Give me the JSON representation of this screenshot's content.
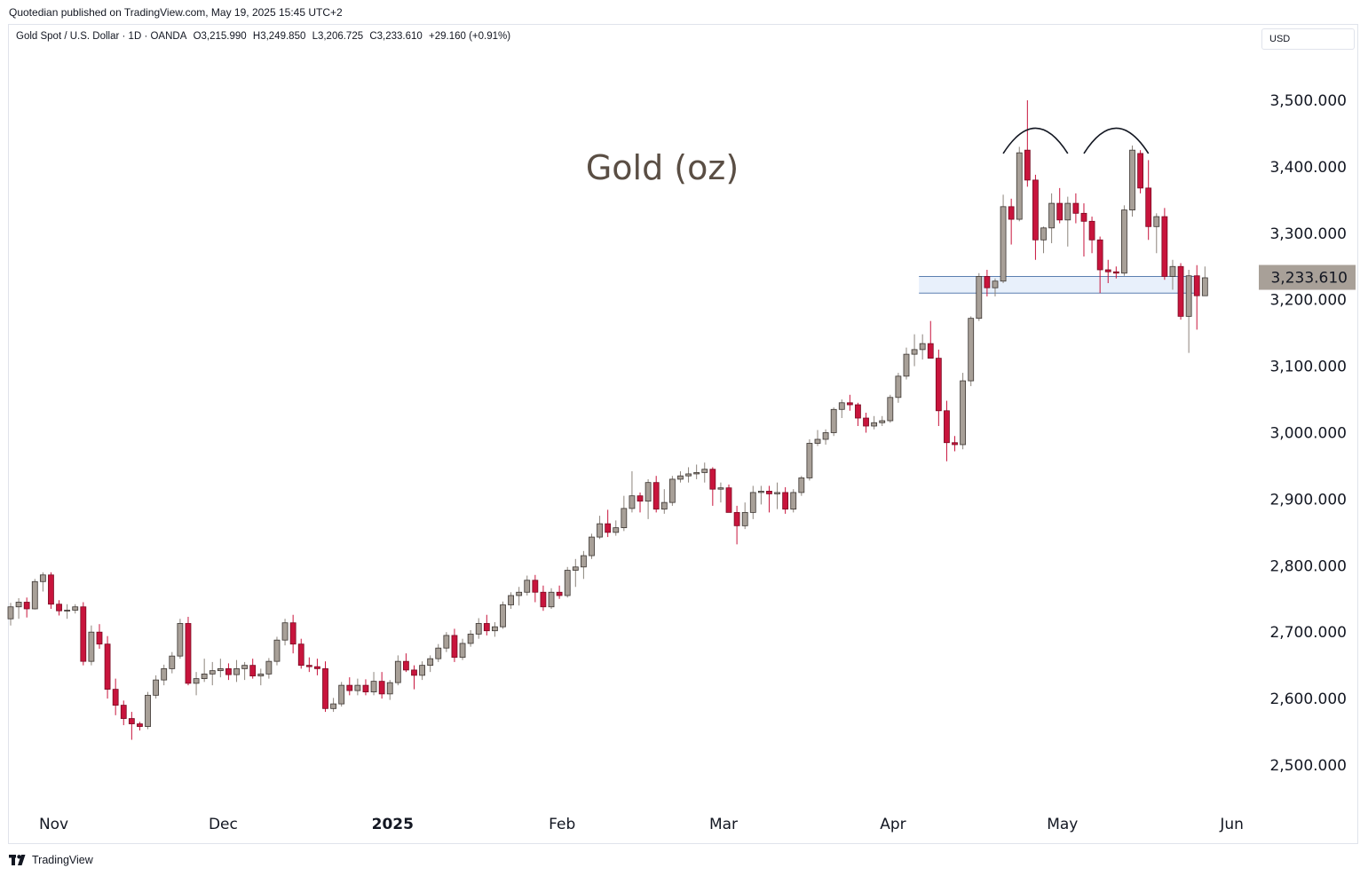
{
  "publisher_line": "Quotedian published on TradingView.com, May 19, 2025 15:45 UTC+2",
  "legend": {
    "symbol": "Gold Spot / U.S. Dollar · 1D · OANDA",
    "open": "O3,215.990",
    "high": "H3,249.850",
    "low": "L3,206.725",
    "close": "C3,233.610",
    "change": "+29.160 (+0.91%)"
  },
  "currency_label": "USD",
  "footer_logo_text": "TradingView",
  "colors": {
    "up": "#a8a098",
    "down": "#c8143c",
    "title": "#5a4e44",
    "grid_text": "#131722",
    "price_label_bg": "#a8a098",
    "zone_fill": "#e8f0fb",
    "zone_line": "#5b7fb0"
  },
  "chart_data": {
    "type": "candlestick",
    "title": "Gold (oz)",
    "symbol": "XAUUSD",
    "interval": "1D",
    "ylim": [
      2440,
      3560
    ],
    "y_ticks": [
      {
        "value": 2500,
        "label": "2,500.000"
      },
      {
        "value": 2600,
        "label": "2,600.000"
      },
      {
        "value": 2700,
        "label": "2,700.000"
      },
      {
        "value": 2800,
        "label": "2,800.000"
      },
      {
        "value": 2900,
        "label": "2,900.000"
      },
      {
        "value": 3000,
        "label": "3,000.000"
      },
      {
        "value": 3100,
        "label": "3,100.000"
      },
      {
        "value": 3200,
        "label": "3,200.000"
      },
      {
        "value": 3300,
        "label": "3,300.000"
      },
      {
        "value": 3400,
        "label": "3,400.000"
      },
      {
        "value": 3500,
        "label": "3,500.000"
      }
    ],
    "x_ticks": [
      {
        "index": 6,
        "label": "Nov",
        "bold": false
      },
      {
        "index": 27,
        "label": "Dec",
        "bold": false
      },
      {
        "index": 48,
        "label": "2025",
        "bold": true
      },
      {
        "index": 69,
        "label": "Feb",
        "bold": false
      },
      {
        "index": 89,
        "label": "Mar",
        "bold": false
      },
      {
        "index": 110,
        "label": "Apr",
        "bold": false
      },
      {
        "index": 131,
        "label": "May",
        "bold": false
      },
      {
        "index": 152,
        "label": "Jun",
        "bold": false
      }
    ],
    "candles": [
      [
        2720,
        2744,
        2710,
        2738
      ],
      [
        2738,
        2751,
        2720,
        2745
      ],
      [
        2745,
        2752,
        2722,
        2735
      ],
      [
        2735,
        2780,
        2734,
        2776
      ],
      [
        2776,
        2790,
        2761,
        2786
      ],
      [
        2786,
        2790,
        2735,
        2742
      ],
      [
        2742,
        2748,
        2725,
        2732
      ],
      [
        2732,
        2742,
        2720,
        2733
      ],
      [
        2733,
        2742,
        2728,
        2738
      ],
      [
        2738,
        2745,
        2650,
        2656
      ],
      [
        2656,
        2710,
        2650,
        2700
      ],
      [
        2700,
        2712,
        2675,
        2682
      ],
      [
        2682,
        2694,
        2600,
        2614
      ],
      [
        2614,
        2630,
        2575,
        2590
      ],
      [
        2590,
        2597,
        2560,
        2570
      ],
      [
        2570,
        2580,
        2538,
        2562
      ],
      [
        2562,
        2565,
        2552,
        2558
      ],
      [
        2558,
        2610,
        2554,
        2605
      ],
      [
        2605,
        2635,
        2600,
        2628
      ],
      [
        2628,
        2651,
        2620,
        2645
      ],
      [
        2645,
        2670,
        2638,
        2664
      ],
      [
        2664,
        2720,
        2660,
        2713
      ],
      [
        2713,
        2723,
        2620,
        2623
      ],
      [
        2623,
        2640,
        2605,
        2630
      ],
      [
        2630,
        2660,
        2625,
        2637
      ],
      [
        2637,
        2655,
        2620,
        2642
      ],
      [
        2642,
        2660,
        2632,
        2645
      ],
      [
        2645,
        2653,
        2628,
        2636
      ],
      [
        2636,
        2658,
        2625,
        2645
      ],
      [
        2645,
        2655,
        2628,
        2650
      ],
      [
        2650,
        2660,
        2630,
        2634
      ],
      [
        2634,
        2645,
        2620,
        2637
      ],
      [
        2637,
        2661,
        2630,
        2656
      ],
      [
        2656,
        2693,
        2650,
        2688
      ],
      [
        2688,
        2720,
        2680,
        2714
      ],
      [
        2714,
        2726,
        2668,
        2682
      ],
      [
        2682,
        2690,
        2645,
        2650
      ],
      [
        2650,
        2662,
        2640,
        2648
      ],
      [
        2648,
        2660,
        2635,
        2645
      ],
      [
        2645,
        2656,
        2580,
        2585
      ],
      [
        2585,
        2601,
        2580,
        2592
      ],
      [
        2592,
        2625,
        2588,
        2620
      ],
      [
        2620,
        2632,
        2605,
        2612
      ],
      [
        2612,
        2630,
        2605,
        2620
      ],
      [
        2620,
        2629,
        2605,
        2610
      ],
      [
        2610,
        2640,
        2605,
        2626
      ],
      [
        2626,
        2640,
        2600,
        2607
      ],
      [
        2607,
        2628,
        2598,
        2624
      ],
      [
        2624,
        2665,
        2620,
        2656
      ],
      [
        2656,
        2668,
        2640,
        2643
      ],
      [
        2643,
        2650,
        2614,
        2635
      ],
      [
        2635,
        2656,
        2628,
        2650
      ],
      [
        2650,
        2665,
        2640,
        2660
      ],
      [
        2660,
        2682,
        2655,
        2676
      ],
      [
        2676,
        2700,
        2670,
        2695
      ],
      [
        2695,
        2705,
        2655,
        2662
      ],
      [
        2662,
        2690,
        2658,
        2683
      ],
      [
        2683,
        2703,
        2678,
        2697
      ],
      [
        2697,
        2721,
        2690,
        2713
      ],
      [
        2713,
        2726,
        2695,
        2702
      ],
      [
        2702,
        2715,
        2693,
        2708
      ],
      [
        2708,
        2746,
        2705,
        2741
      ],
      [
        2741,
        2760,
        2735,
        2755
      ],
      [
        2755,
        2768,
        2740,
        2760
      ],
      [
        2760,
        2785,
        2755,
        2778
      ],
      [
        2778,
        2786,
        2745,
        2760
      ],
      [
        2760,
        2770,
        2732,
        2738
      ],
      [
        2738,
        2766,
        2735,
        2760
      ],
      [
        2760,
        2770,
        2750,
        2755
      ],
      [
        2755,
        2798,
        2752,
        2793
      ],
      [
        2793,
        2810,
        2768,
        2798
      ],
      [
        2798,
        2822,
        2780,
        2815
      ],
      [
        2815,
        2848,
        2810,
        2843
      ],
      [
        2843,
        2875,
        2840,
        2863
      ],
      [
        2863,
        2884,
        2843,
        2850
      ],
      [
        2850,
        2868,
        2845,
        2857
      ],
      [
        2857,
        2905,
        2852,
        2886
      ],
      [
        2886,
        2942,
        2880,
        2905
      ],
      [
        2905,
        2910,
        2880,
        2897
      ],
      [
        2897,
        2930,
        2870,
        2925
      ],
      [
        2925,
        2935,
        2880,
        2885
      ],
      [
        2885,
        2915,
        2878,
        2895
      ],
      [
        2895,
        2935,
        2890,
        2930
      ],
      [
        2930,
        2942,
        2925,
        2935
      ],
      [
        2935,
        2948,
        2925,
        2938
      ],
      [
        2938,
        2952,
        2930,
        2940
      ],
      [
        2940,
        2955,
        2925,
        2945
      ],
      [
        2945,
        2948,
        2890,
        2915
      ],
      [
        2915,
        2925,
        2895,
        2917
      ],
      [
        2917,
        2922,
        2880,
        2880
      ],
      [
        2880,
        2890,
        2832,
        2860
      ],
      [
        2860,
        2895,
        2855,
        2880
      ],
      [
        2880,
        2920,
        2870,
        2910
      ],
      [
        2910,
        2920,
        2892,
        2912
      ],
      [
        2912,
        2920,
        2880,
        2908
      ],
      [
        2908,
        2925,
        2885,
        2910
      ],
      [
        2910,
        2918,
        2878,
        2885
      ],
      [
        2885,
        2915,
        2880,
        2910
      ],
      [
        2910,
        2935,
        2905,
        2932
      ],
      [
        2932,
        2990,
        2928,
        2984
      ],
      [
        2984,
        3004,
        2980,
        2990
      ],
      [
        2990,
        3005,
        2982,
        3000
      ],
      [
        3000,
        3038,
        2995,
        3035
      ],
      [
        3035,
        3050,
        3022,
        3045
      ],
      [
        3045,
        3057,
        3033,
        3042
      ],
      [
        3042,
        3045,
        3010,
        3022
      ],
      [
        3022,
        3030,
        3000,
        3010
      ],
      [
        3010,
        3025,
        3005,
        3015
      ],
      [
        3015,
        3025,
        3010,
        3018
      ],
      [
        3018,
        3057,
        3015,
        3053
      ],
      [
        3053,
        3090,
        3045,
        3085
      ],
      [
        3085,
        3128,
        3080,
        3118
      ],
      [
        3118,
        3148,
        3100,
        3125
      ],
      [
        3125,
        3148,
        3110,
        3134
      ],
      [
        3134,
        3168,
        3120,
        3112
      ],
      [
        3112,
        3125,
        3010,
        3033
      ],
      [
        3033,
        3048,
        2957,
        2985
      ],
      [
        2985,
        2995,
        2972,
        2982
      ],
      [
        2982,
        3090,
        2975,
        3078
      ],
      [
        3078,
        3175,
        3070,
        3172
      ],
      [
        3172,
        3240,
        3168,
        3235
      ],
      [
        3235,
        3245,
        3205,
        3218
      ],
      [
        3218,
        3232,
        3205,
        3228
      ],
      [
        3228,
        3358,
        3225,
        3340
      ],
      [
        3340,
        3352,
        3283,
        3321
      ],
      [
        3321,
        3430,
        3318,
        3421
      ],
      [
        3425,
        3500,
        3370,
        3380
      ],
      [
        3380,
        3388,
        3260,
        3290
      ],
      [
        3290,
        3310,
        3270,
        3308
      ],
      [
        3308,
        3360,
        3285,
        3345
      ],
      [
        3345,
        3368,
        3315,
        3320
      ],
      [
        3320,
        3355,
        3280,
        3345
      ],
      [
        3345,
        3360,
        3315,
        3330
      ],
      [
        3330,
        3345,
        3265,
        3318
      ],
      [
        3318,
        3325,
        3270,
        3290
      ],
      [
        3290,
        3295,
        3210,
        3245
      ],
      [
        3245,
        3260,
        3225,
        3242
      ],
      [
        3242,
        3250,
        3232,
        3240
      ],
      [
        3240,
        3342,
        3236,
        3335
      ],
      [
        3335,
        3432,
        3325,
        3425
      ],
      [
        3420,
        3425,
        3360,
        3368
      ],
      [
        3368,
        3410,
        3290,
        3310
      ],
      [
        3310,
        3330,
        3270,
        3325
      ],
      [
        3325,
        3338,
        3230,
        3235
      ],
      [
        3235,
        3260,
        3215,
        3250
      ],
      [
        3250,
        3255,
        3170,
        3175
      ],
      [
        3175,
        3245,
        3120,
        3236
      ],
      [
        3236,
        3252,
        3155,
        3206
      ],
      [
        3206,
        3250,
        3210,
        3233
      ]
    ],
    "support_zone": [
      3210,
      3235
    ],
    "zone_start_index": 113,
    "zone_end_index": 146,
    "last_price_label": "3,233.610",
    "last_price": 3233.61,
    "annotation_arcs": [
      {
        "from_index": 123,
        "to_index": 131,
        "apex": 3458,
        "base": 3420
      },
      {
        "from_index": 133,
        "to_index": 141,
        "apex": 3458,
        "base": 3420
      }
    ]
  }
}
